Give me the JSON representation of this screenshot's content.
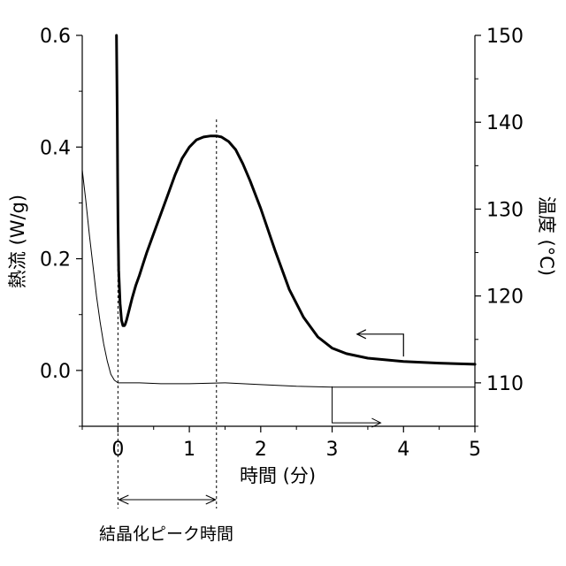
{
  "chart_data": {
    "type": "line",
    "xlabel": "時間 (分)",
    "ylabel_left": "熱流 (W/g)",
    "ylabel_right": "温度 (°C)",
    "xlim": [
      -0.5,
      5
    ],
    "ylim_left": [
      -0.1,
      0.6
    ],
    "ylim_right": [
      105,
      150
    ],
    "x_ticks": [
      "0",
      "1",
      "2",
      "3",
      "4",
      "5"
    ],
    "y_left_ticks": [
      "0.0",
      "0.2",
      "0.4",
      "0.6"
    ],
    "y_right_ticks": [
      "110",
      "120",
      "130",
      "140",
      "150"
    ],
    "grid": false,
    "series": [
      {
        "role": "heat-flow",
        "axis": "left",
        "color": "#000000",
        "style": "thick",
        "x": [
          -0.02,
          -0.015,
          -0.01,
          -0.005,
          0.0,
          0.01,
          0.03,
          0.05,
          0.07,
          0.09,
          0.1,
          0.12,
          0.15,
          0.2,
          0.25,
          0.3,
          0.35,
          0.4,
          0.5,
          0.6,
          0.7,
          0.8,
          0.9,
          1.0,
          1.1,
          1.2,
          1.3,
          1.38,
          1.45,
          1.55,
          1.65,
          1.75,
          1.85,
          2.0,
          2.2,
          2.4,
          2.6,
          2.8,
          3.0,
          3.2,
          3.5,
          4.0,
          4.5,
          5.0
        ],
        "y": [
          0.6,
          0.52,
          0.45,
          0.35,
          0.27,
          0.18,
          0.12,
          0.09,
          0.08,
          0.08,
          0.082,
          0.09,
          0.105,
          0.13,
          0.152,
          0.17,
          0.19,
          0.21,
          0.245,
          0.28,
          0.315,
          0.35,
          0.38,
          0.4,
          0.413,
          0.418,
          0.42,
          0.42,
          0.418,
          0.41,
          0.395,
          0.37,
          0.34,
          0.29,
          0.215,
          0.145,
          0.095,
          0.06,
          0.04,
          0.03,
          0.022,
          0.016,
          0.013,
          0.011
        ]
      },
      {
        "role": "temperature",
        "axis": "right",
        "color": "#000000",
        "style": "thin",
        "x": [
          -0.5,
          -0.45,
          -0.4,
          -0.35,
          -0.3,
          -0.25,
          -0.2,
          -0.15,
          -0.1,
          -0.05,
          0.0,
          0.1,
          0.3,
          0.6,
          1.0,
          1.5,
          2.0,
          2.5,
          3.0,
          3.5,
          4.0,
          4.5,
          5.0
        ],
        "y": [
          134.5,
          131.0,
          127.0,
          123.5,
          120.0,
          117.0,
          114.5,
          112.5,
          111.0,
          110.3,
          110.0,
          110.0,
          110.0,
          109.9,
          109.9,
          110.0,
          109.8,
          109.6,
          109.5,
          109.5,
          109.5,
          109.5,
          109.5
        ]
      }
    ],
    "annotations": {
      "vlines_x": [
        0,
        1.38
      ],
      "crystallization_label": "結晶化ピーク時間"
    }
  }
}
